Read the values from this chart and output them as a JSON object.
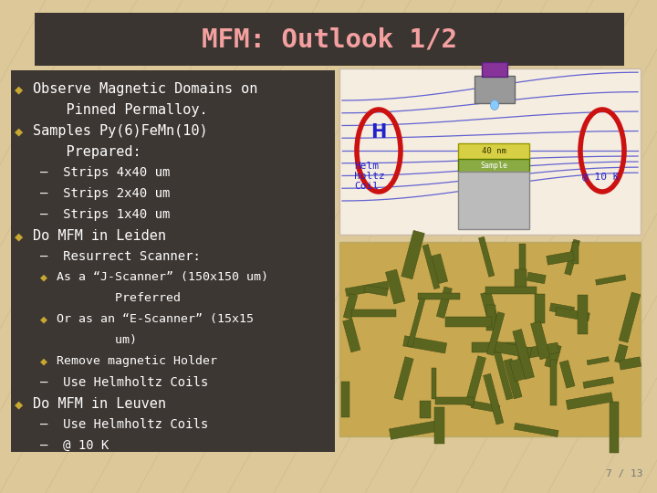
{
  "title": "MFM: Outlook 1/2",
  "title_color": "#f4a0a0",
  "title_bg": "#3a3530",
  "slide_bg": "#dcc898",
  "content_bg": "#383230",
  "content_text_color": "#ffffff",
  "bullet_color": "#c8a830",
  "slide_number": "7 / 13",
  "lines": [
    {
      "level": 0,
      "bullet": true,
      "text": "Observe Magnetic Domains on"
    },
    {
      "level": 0,
      "bullet": false,
      "text": "    Pinned Permalloy."
    },
    {
      "level": 0,
      "bullet": true,
      "text": "Samples Py(6)FeMn(10)"
    },
    {
      "level": 0,
      "bullet": false,
      "text": "    Prepared:"
    },
    {
      "level": 1,
      "bullet": false,
      "text": "–  Strips 4x40 um"
    },
    {
      "level": 1,
      "bullet": false,
      "text": "–  Strips 2x40 um"
    },
    {
      "level": 1,
      "bullet": false,
      "text": "–  Strips 1x40 um"
    },
    {
      "level": 0,
      "bullet": true,
      "text": "Do MFM in Leiden"
    },
    {
      "level": 1,
      "bullet": false,
      "text": "–  Resurrect Scanner:"
    },
    {
      "level": 2,
      "bullet": true,
      "text": "As a “J-Scanner” (150x150 um)"
    },
    {
      "level": 2,
      "bullet": false,
      "text": "        Preferred"
    },
    {
      "level": 2,
      "bullet": true,
      "text": "Or as an “E-Scanner” (15x15"
    },
    {
      "level": 2,
      "bullet": false,
      "text": "        um)"
    },
    {
      "level": 2,
      "bullet": true,
      "text": "Remove magnetic Holder"
    },
    {
      "level": 1,
      "bullet": false,
      "text": "–  Use Helmholtz Coils"
    },
    {
      "level": 0,
      "bullet": true,
      "text": "Do MFM in Leuven"
    },
    {
      "level": 1,
      "bullet": false,
      "text": "–  Use Helmholtz Coils"
    },
    {
      "level": 1,
      "bullet": false,
      "text": "–  @ 10 K"
    }
  ]
}
